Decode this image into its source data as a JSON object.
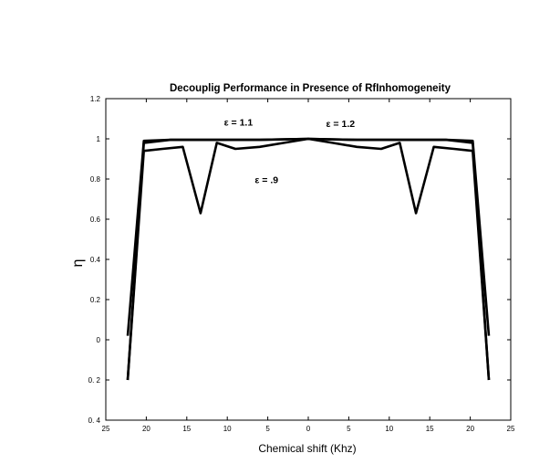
{
  "chart_data": {
    "type": "line",
    "title": "Decouplig  Performance  in  Presence  of  RfInhomogeneity",
    "xlabel": "Chemical shift (Khz)",
    "ylabel": "η",
    "xlim": [
      -25,
      25
    ],
    "ylim": [
      -0.4,
      1.2
    ],
    "x_tick_values": [
      -25,
      -20,
      -15,
      -10,
      -5,
      0,
      5,
      10,
      15,
      20,
      25
    ],
    "x_tick_labels": [
      "25",
      "20",
      "15",
      "10",
      "5",
      "0",
      "5",
      "10",
      "15",
      "20",
      "25"
    ],
    "y_tick_values": [
      1.2,
      1,
      0.8,
      0.6,
      0.4,
      0.2,
      0,
      -0.2,
      -0.4
    ],
    "y_tick_labels": [
      "1.2",
      "1",
      "0.8",
      "0.6",
      "0.4",
      "0.2",
      "0",
      "0. 2",
      "0. 4"
    ],
    "grid": false,
    "series": [
      {
        "name": "ε = 1.1",
        "x": [
          -22.3,
          -20.3,
          -17,
          -12,
          -6,
          0,
          6,
          12,
          17,
          20.3,
          22.3
        ],
        "y": [
          -0.2,
          0.98,
          0.995,
          0.995,
          0.995,
          1.0,
          0.995,
          0.995,
          0.995,
          0.98,
          -0.2
        ]
      },
      {
        "name": "ε = 1.2",
        "x": [
          -22.3,
          -20.3,
          -17,
          -12,
          -6,
          0,
          6,
          12,
          17,
          20.3,
          22.3
        ],
        "y": [
          0.02,
          0.99,
          0.995,
          0.995,
          0.995,
          1.0,
          0.995,
          0.995,
          0.995,
          0.99,
          0.02
        ]
      },
      {
        "name": "ε = .9",
        "x": [
          -22.3,
          -20.3,
          -18,
          -15.5,
          -13.3,
          -11.3,
          -9,
          -6,
          -3,
          0,
          3,
          6,
          9,
          11.3,
          13.3,
          15.5,
          18,
          20.3,
          22.3
        ],
        "y": [
          -0.2,
          0.94,
          0.95,
          0.96,
          0.63,
          0.98,
          0.95,
          0.96,
          0.98,
          1.0,
          0.98,
          0.96,
          0.95,
          0.98,
          0.63,
          0.96,
          0.95,
          0.94,
          -0.2
        ]
      }
    ],
    "annotations": [
      {
        "text": "ε  =  1.1",
        "x": -10.4,
        "y": 1.065
      },
      {
        "text": "ε  =  1.2",
        "x": 2.2,
        "y": 1.06
      },
      {
        "text": "ε  =  .9",
        "x": -6.6,
        "y": 0.78
      }
    ]
  }
}
